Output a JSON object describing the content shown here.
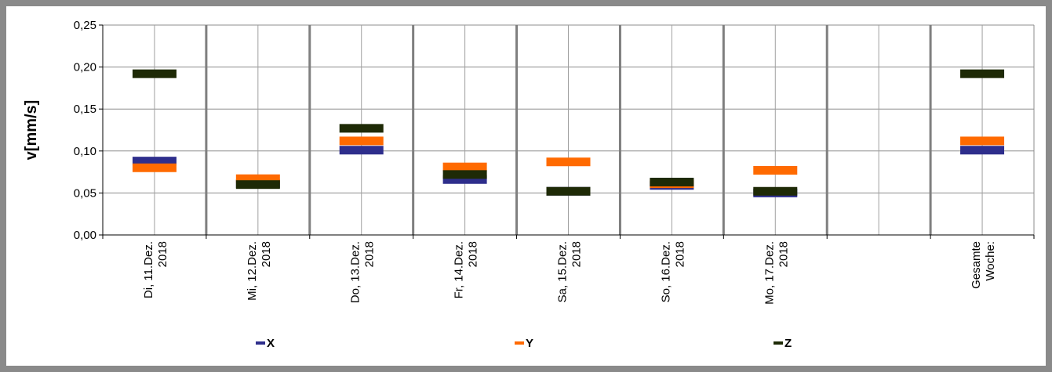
{
  "chart_data": {
    "type": "scatter",
    "ylabel": "v[mm/s]",
    "ylim": [
      0,
      0.25
    ],
    "yticks": [
      "0,00",
      "0,05",
      "0,10",
      "0,15",
      "0,20",
      "0,25"
    ],
    "grid": true,
    "legend_position": "bottom",
    "categories": [
      [
        "Di, 11.Dez.",
        "2018"
      ],
      [
        "Mi, 12.Dez.",
        "2018"
      ],
      [
        "Do, 13.Dez.",
        "2018"
      ],
      [
        "Fr, 14.Dez.",
        "2018"
      ],
      [
        "Sa, 15.Dez.",
        "2018"
      ],
      [
        "So, 16.Dez.",
        "2018"
      ],
      [
        "Mo, 17.Dez.",
        "2018"
      ],
      [
        "",
        ""
      ],
      [
        "Gesamte",
        "Woche:"
      ]
    ],
    "series": [
      {
        "name": "X",
        "color": "#2e2e8c",
        "values": [
          0.088,
          0.061,
          0.101,
          0.066,
          0.052,
          0.059,
          0.05,
          null,
          0.101
        ]
      },
      {
        "name": "Y",
        "color": "#ff6a00",
        "values": [
          0.08,
          0.067,
          0.112,
          0.081,
          0.087,
          0.061,
          0.077,
          null,
          0.112
        ]
      },
      {
        "name": "Z",
        "color": "#1e2a06",
        "values": [
          0.192,
          0.06,
          0.127,
          0.072,
          0.052,
          0.063,
          0.052,
          null,
          0.192
        ]
      }
    ]
  }
}
